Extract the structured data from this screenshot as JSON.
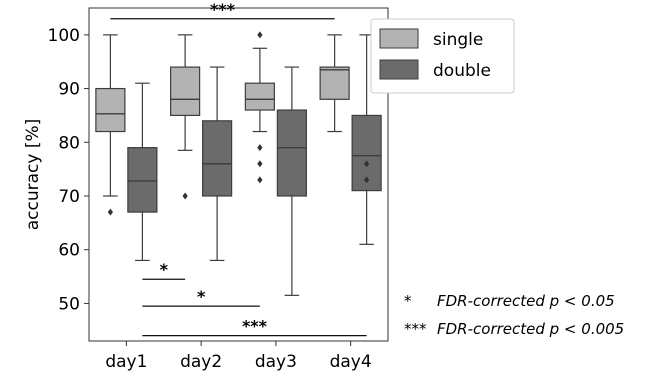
{
  "chart_data": {
    "type": "box",
    "categories": [
      "day1",
      "day2",
      "day3",
      "day4"
    ],
    "ylabel": "accuracy [%]",
    "xlabel": "",
    "ylim": [
      43,
      105
    ],
    "yticks": [
      50,
      60,
      70,
      80,
      90,
      100
    ],
    "grid": false,
    "legend_position": "top-right",
    "colors": {
      "single": "#b3b3b3",
      "double": "#6b6b6b",
      "line": "#3d3d3d"
    },
    "series": [
      {
        "name": "single",
        "boxes": [
          {
            "whislo": 70,
            "q1": 82,
            "med": 85.3,
            "q3": 90,
            "whishi": 100,
            "fliers": [
              67
            ]
          },
          {
            "whislo": 78.5,
            "q1": 85,
            "med": 88,
            "q3": 94,
            "whishi": 100,
            "fliers": [
              70
            ]
          },
          {
            "whislo": 82,
            "q1": 86,
            "med": 88,
            "q3": 91,
            "whishi": 97.5,
            "fliers": [
              100,
              79,
              76,
              73
            ]
          },
          {
            "whislo": 82,
            "q1": 88,
            "med": 93.5,
            "q3": 94,
            "whishi": 100,
            "fliers": []
          }
        ]
      },
      {
        "name": "double",
        "boxes": [
          {
            "whislo": 58,
            "q1": 67,
            "med": 72.8,
            "q3": 79,
            "whishi": 91,
            "fliers": []
          },
          {
            "whislo": 58,
            "q1": 70,
            "med": 76,
            "q3": 84,
            "whishi": 94,
            "fliers": []
          },
          {
            "whislo": 51.5,
            "q1": 70,
            "med": 79,
            "q3": 86,
            "whishi": 94,
            "fliers": []
          },
          {
            "whislo": 61,
            "q1": 71,
            "med": 77.5,
            "q3": 85,
            "whishi": 100,
            "fliers": [
              76,
              73
            ]
          }
        ]
      }
    ],
    "significance": [
      {
        "from": "day1",
        "from_series": "single",
        "to": "day4",
        "to_series": "single",
        "y": 103,
        "label": "***"
      },
      {
        "from": "day1",
        "from_series": "double",
        "to": "day2",
        "to_series": "single",
        "y": 54.5,
        "label": "*"
      },
      {
        "from": "day1",
        "from_series": "double",
        "to": "day3",
        "to_series": "single",
        "y": 49.5,
        "label": "*"
      },
      {
        "from": "day1",
        "from_series": "double",
        "to": "day4",
        "to_series": "double",
        "y": 44,
        "label": "***"
      }
    ]
  },
  "footnotes": [
    {
      "symbol": "*",
      "text": "FDR-corrected p < 0.05"
    },
    {
      "symbol": "***",
      "text": "FDR-corrected p < 0.005"
    }
  ]
}
